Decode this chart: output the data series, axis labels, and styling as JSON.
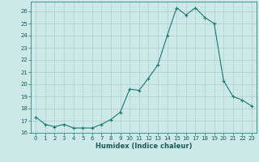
{
  "x": [
    0,
    1,
    2,
    3,
    4,
    5,
    6,
    7,
    8,
    9,
    10,
    11,
    12,
    13,
    14,
    15,
    16,
    17,
    18,
    19,
    20,
    21,
    22,
    23
  ],
  "y": [
    17.3,
    16.7,
    16.5,
    16.7,
    16.4,
    16.4,
    16.4,
    16.7,
    17.1,
    17.7,
    19.6,
    19.5,
    20.5,
    21.6,
    24.0,
    26.3,
    25.7,
    26.3,
    25.5,
    25.0,
    20.3,
    19.0,
    18.7,
    18.2
  ],
  "xlabel": "Humidex (Indice chaleur)",
  "line_color": "#1a7a6e",
  "marker_color": "#1a7a6e",
  "bg_color": "#cce8e8",
  "grid_color": "#b0cccc",
  "xlim": [
    -0.5,
    23.5
  ],
  "ylim": [
    16,
    26.8
  ],
  "yticks": [
    16,
    17,
    18,
    19,
    20,
    21,
    22,
    23,
    24,
    25,
    26
  ],
  "xticks": [
    0,
    1,
    2,
    3,
    4,
    5,
    6,
    7,
    8,
    9,
    10,
    11,
    12,
    13,
    14,
    15,
    16,
    17,
    18,
    19,
    20,
    21,
    22,
    23
  ],
  "tick_fontsize": 5.0,
  "xlabel_fontsize": 6.0
}
